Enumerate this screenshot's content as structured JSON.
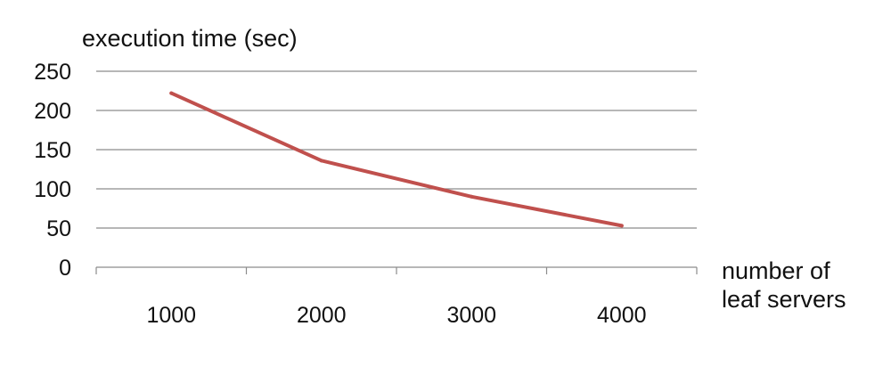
{
  "chart_data": {
    "type": "line",
    "title": "",
    "ylabel": "execution time (sec)",
    "xlabel_lines": [
      "number of",
      "leaf servers"
    ],
    "categories": [
      "1000",
      "2000",
      "3000",
      "4000"
    ],
    "series": [
      {
        "values": [
          222,
          136,
          90,
          53
        ],
        "color": "#c0504d"
      }
    ],
    "y_ticks": [
      "0",
      "50",
      "100",
      "150",
      "200",
      "250"
    ],
    "ylim": [
      0,
      250
    ],
    "grid": true,
    "legend": "none",
    "gridline_color": "#8c8c8c",
    "line_color": "#c0504d"
  }
}
